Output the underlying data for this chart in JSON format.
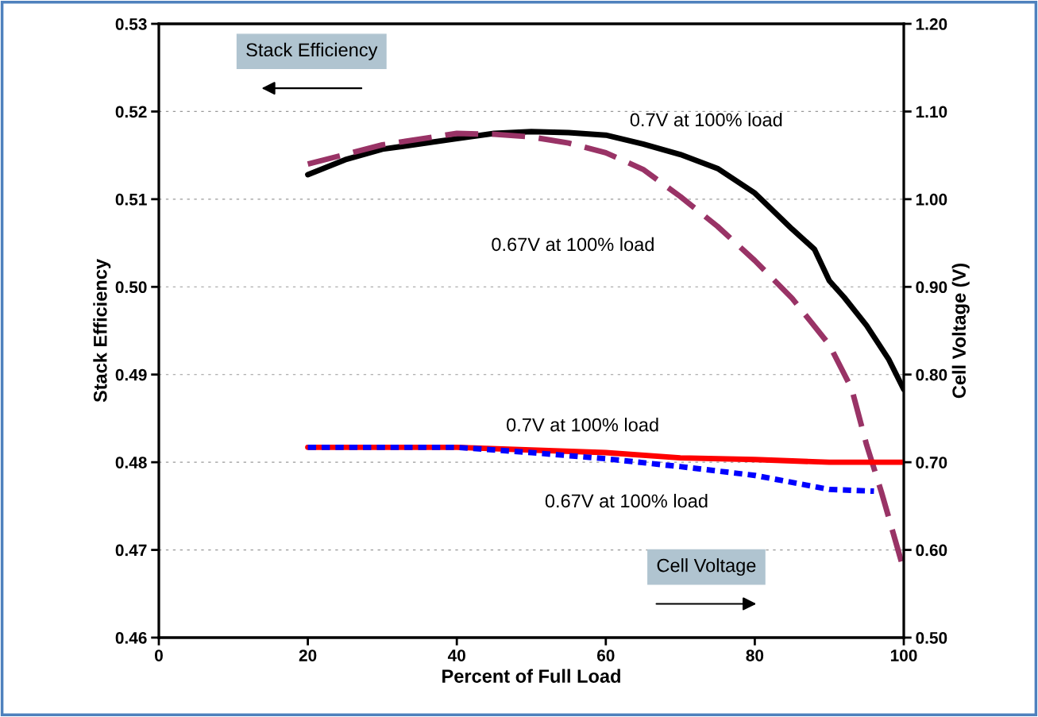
{
  "chart_data": {
    "type": "line",
    "xlabel": "Percent of Full Load",
    "ylabel": "Stack Efficiency",
    "y2label": "Cell Voltage (V)",
    "xlim": [
      0,
      100
    ],
    "xticks": [
      0,
      20,
      40,
      60,
      80,
      100
    ],
    "ylim": [
      0.46,
      0.53
    ],
    "yticks": [
      {
        "value": 0.46,
        "label": "0.46"
      },
      {
        "value": 0.47,
        "label": "0.47"
      },
      {
        "value": 0.48,
        "label": "0.48"
      },
      {
        "value": 0.49,
        "label": "0.49"
      },
      {
        "value": 0.5,
        "label": "0.50"
      },
      {
        "value": 0.51,
        "label": "0.51"
      },
      {
        "value": 0.52,
        "label": "0.52"
      },
      {
        "value": 0.53,
        "label": "0.53"
      }
    ],
    "y2lim": [
      0.5,
      1.2
    ],
    "y2ticks": [
      {
        "value": 0.5,
        "label": "0.50"
      },
      {
        "value": 0.6,
        "label": "0.60"
      },
      {
        "value": 0.7,
        "label": "0.70"
      },
      {
        "value": 0.8,
        "label": "0.80"
      },
      {
        "value": 0.9,
        "label": "0.90"
      },
      {
        "value": 1.0,
        "label": "1.00"
      },
      {
        "value": 1.1,
        "label": "1.10"
      },
      {
        "value": 1.2,
        "label": "1.20"
      }
    ],
    "grid": "y",
    "marker": "none",
    "series": [
      {
        "color": "#000000",
        "line_style": "solid",
        "x": [
          20,
          25,
          30,
          35,
          40,
          45,
          50,
          55,
          60,
          65,
          70,
          75,
          80,
          85,
          88,
          90,
          92,
          95,
          98,
          100
        ],
        "values": [
          0.5128,
          0.5145,
          0.5157,
          0.5163,
          0.5169,
          0.5175,
          0.5177,
          0.5176,
          0.5173,
          0.5163,
          0.5151,
          0.5135,
          0.5107,
          0.5066,
          0.5043,
          0.5007,
          0.4988,
          0.4956,
          0.4917,
          0.4883
        ]
      },
      {
        "color": "#993366",
        "line_style": "dashed",
        "x": [
          20,
          30,
          40,
          45,
          50,
          55,
          60,
          65,
          70,
          75,
          80,
          85,
          90,
          93,
          95,
          97,
          100
        ],
        "values": [
          0.514,
          0.5162,
          0.5175,
          0.5174,
          0.5171,
          0.5164,
          0.5153,
          0.5134,
          0.5103,
          0.5069,
          0.503,
          0.4987,
          0.4934,
          0.4884,
          0.482,
          0.4766,
          0.4677
        ]
      },
      {
        "color": "#ff0000",
        "line_style": "solid",
        "axis": "y2",
        "x": [
          20,
          30,
          40,
          50,
          60,
          70,
          80,
          90,
          100
        ],
        "values": [
          0.717,
          0.717,
          0.717,
          0.714,
          0.711,
          0.705,
          0.703,
          0.7,
          0.7
        ]
      },
      {
        "color": "#0000ff",
        "line_style": "dotted",
        "axis": "y2",
        "x": [
          20,
          30,
          40,
          50,
          60,
          70,
          80,
          90,
          96
        ],
        "values": [
          0.717,
          0.717,
          0.717,
          0.711,
          0.704,
          0.695,
          0.685,
          0.669,
          0.667
        ]
      }
    ],
    "annotations": [
      "0.7V at 100% load",
      "0.67V at 100% load",
      "0.7V at 100% load",
      "0.67V at 100% load",
      "Stack Efficiency",
      "Cell Voltage"
    ]
  }
}
